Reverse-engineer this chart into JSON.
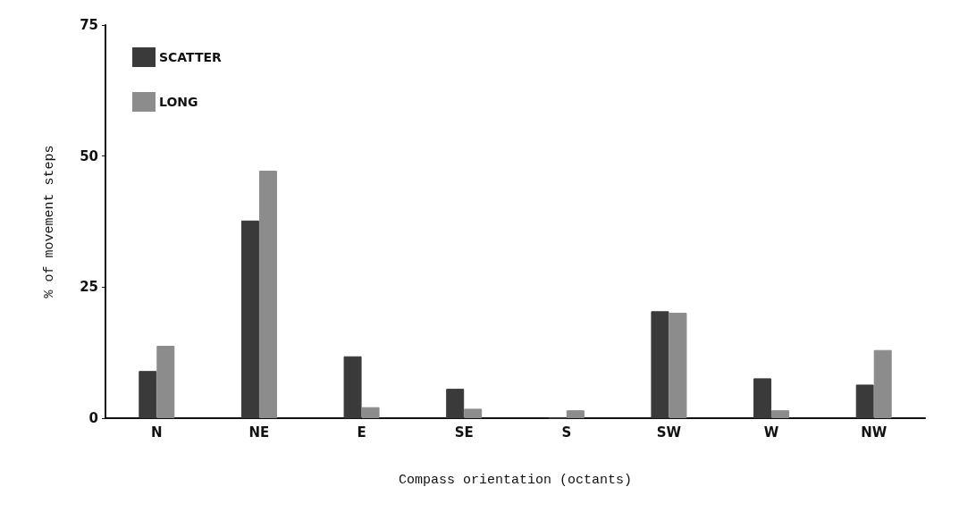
{
  "chart_data": {
    "type": "bar",
    "xlabel": "Compass orientation (octants)",
    "ylabel": "% of movement steps",
    "categories": [
      "N",
      "NE",
      "E",
      "SE",
      "S",
      "SW",
      "W",
      "NW"
    ],
    "series": [
      {
        "name": "SCATTER",
        "color": "#3a3a3a",
        "values": [
          9.0,
          37.7,
          11.8,
          5.6,
          0,
          20.4,
          7.6,
          6.4
        ]
      },
      {
        "name": "LONG",
        "color": "#8c8c8c",
        "values": [
          13.8,
          47.2,
          2.1,
          1.8,
          1.5,
          20.1,
          1.5,
          13.0
        ]
      }
    ],
    "ylim": [
      0,
      75
    ],
    "yticks": [
      0,
      25,
      50,
      75
    ],
    "grid": false,
    "legend": "top left"
  }
}
